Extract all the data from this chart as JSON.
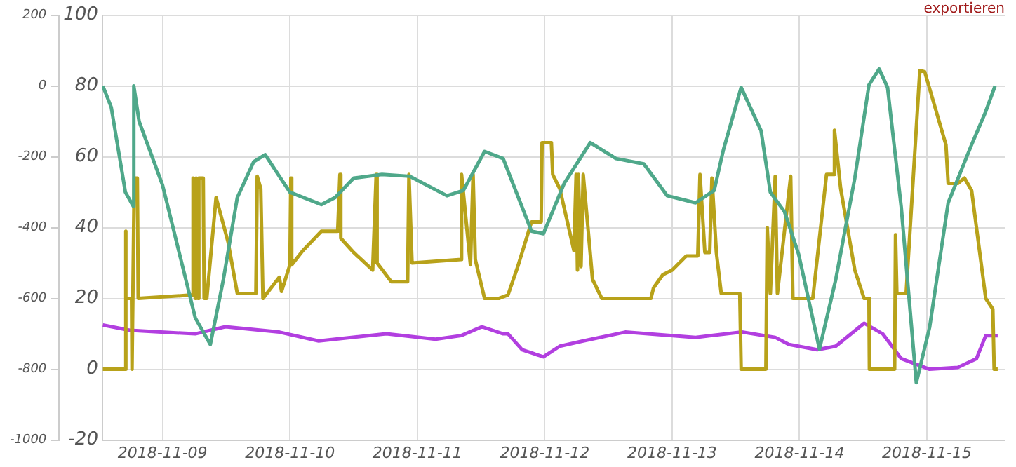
{
  "chart_data": {
    "type": "line",
    "xlim": [
      "2018-11-08T12:40",
      "2018-11-15T14:40"
    ],
    "xticks": [
      "2018-11-09",
      "2018-11-10",
      "2018-11-11",
      "2018-11-12",
      "2018-11-13",
      "2018-11-14",
      "2018-11-15"
    ],
    "ylim": [
      -20,
      100
    ],
    "yticks": [
      -20,
      0,
      20,
      40,
      60,
      80,
      100
    ],
    "y2lim": [
      -1000,
      200
    ],
    "y2ticks": [
      -1000,
      -800,
      -600,
      -400,
      -200,
      0,
      200
    ],
    "grid": true,
    "legend": false,
    "marker": "none",
    "line_style": "solid",
    "annotations": [
      "exportieren"
    ],
    "series": [
      {
        "color": "#4fa88a",
        "x": [
          "2018-11-08T12:45",
          "2018-11-08T14:20",
          "2018-11-08T17:00",
          "2018-11-08T18:30",
          "2018-11-08T18:35",
          "2018-11-08T19:35",
          "2018-11-09T00:00",
          "2018-11-09T06:10",
          "2018-11-09T09:00",
          "2018-11-09T11:25",
          "2018-11-09T14:05",
          "2018-11-09T17:10",
          "2018-11-09T19:20",
          "2018-11-09T22:00",
          "2018-11-10T00:00",
          "2018-11-10T05:55",
          "2018-11-10T08:30",
          "2018-11-10T12:00",
          "2018-11-10T17:20",
          "2018-11-10T22:35",
          "2018-11-11T05:35",
          "2018-11-11T08:40",
          "2018-11-11T12:40",
          "2018-11-11T16:10",
          "2018-11-11T21:30",
          "2018-11-11T23:45",
          "2018-11-12T03:40",
          "2018-11-12T08:35",
          "2018-11-12T13:25",
          "2018-11-12T18:40",
          "2018-11-12T23:05",
          "2018-11-13T04:25",
          "2018-11-13T07:55",
          "2018-11-13T09:40",
          "2018-11-13T13:00",
          "2018-11-13T16:45",
          "2018-11-13T18:30",
          "2018-11-13T21:10",
          "2018-11-13T23:50",
          "2018-11-14T03:45",
          "2018-11-14T06:50",
          "2018-11-14T10:25",
          "2018-11-14T13:05",
          "2018-11-14T15:00",
          "2018-11-14T16:35",
          "2018-11-14T19:10",
          "2018-11-14T22:00",
          "2018-11-15T00:30",
          "2018-11-15T04:00",
          "2018-11-15T08:25",
          "2018-11-15T11:05",
          "2018-11-15T12:50"
        ],
        "values": [
          80,
          74,
          50,
          46,
          80,
          70,
          52,
          14.5,
          7,
          25,
          48.5,
          58.6,
          60.6,
          54.5,
          50,
          46.5,
          48.5,
          54,
          55,
          54.5,
          49,
          50.5,
          61.5,
          59.5,
          39,
          38.3,
          52.5,
          64,
          59.5,
          58,
          49,
          47,
          50.5,
          62,
          79.6,
          67.4,
          50,
          44.5,
          32.5,
          5.7,
          25.4,
          54,
          80.3,
          84.8,
          79.6,
          45.7,
          -3.8,
          11.8,
          47,
          63.4,
          72.8,
          80
        ]
      },
      {
        "color": "#b8a21a",
        "x": [
          "2018-11-08T12:45",
          "2018-11-08T16:58",
          "2018-11-08T17:00",
          "2018-11-08T17:10",
          "2018-11-08T18:10",
          "2018-11-08T18:15",
          "2018-11-08T18:40",
          "2018-11-08T19:15",
          "2018-11-08T19:25",
          "2018-11-09T05:40",
          "2018-11-09T05:45",
          "2018-11-09T06:10",
          "2018-11-09T06:20",
          "2018-11-09T06:40",
          "2018-11-09T06:50",
          "2018-11-09T07:10",
          "2018-11-09T07:40",
          "2018-11-09T07:50",
          "2018-11-09T08:20",
          "2018-11-09T10:05",
          "2018-11-09T12:20",
          "2018-11-09T14:05",
          "2018-11-09T17:35",
          "2018-11-09T17:50",
          "2018-11-09T18:30",
          "2018-11-09T18:55",
          "2018-11-09T22:00",
          "2018-11-09T22:25",
          "2018-11-10T00:00",
          "2018-11-10T00:10",
          "2018-11-10T00:20",
          "2018-11-10T02:25",
          "2018-11-10T05:55",
          "2018-11-10T09:00",
          "2018-11-10T09:25",
          "2018-11-10T09:35",
          "2018-11-10T12:00",
          "2018-11-10T15:35",
          "2018-11-10T16:15",
          "2018-11-10T16:25",
          "2018-11-10T19:05",
          "2018-11-10T22:10",
          "2018-11-10T22:25",
          "2018-11-10T23:00",
          "2018-11-11T08:15",
          "2018-11-11T08:20",
          "2018-11-11T10:00",
          "2018-11-11T10:30",
          "2018-11-11T10:55",
          "2018-11-11T12:40",
          "2018-11-11T15:20",
          "2018-11-11T17:05",
          "2018-11-11T18:55",
          "2018-11-11T21:30",
          "2018-11-11T23:20",
          "2018-11-11T23:30",
          "2018-11-12T01:15",
          "2018-11-12T01:30",
          "2018-11-12T02:50",
          "2018-11-12T05:30",
          "2018-11-12T05:55",
          "2018-11-12T06:10",
          "2018-11-12T06:20",
          "2018-11-12T06:50",
          "2018-11-12T07:15",
          "2018-11-12T09:00",
          "2018-11-12T10:45",
          "2018-11-12T20:00",
          "2018-11-12T20:30",
          "2018-11-12T22:15",
          "2018-11-13T00:00",
          "2018-11-13T02:40",
          "2018-11-13T04:50",
          "2018-11-13T05:15",
          "2018-11-13T06:10",
          "2018-11-13T07:05",
          "2018-11-13T07:30",
          "2018-11-13T08:20",
          "2018-11-13T09:15",
          "2018-11-13T12:45",
          "2018-11-13T13:00",
          "2018-11-13T17:40",
          "2018-11-13T17:55",
          "2018-11-13T18:30",
          "2018-11-13T19:25",
          "2018-11-13T19:50",
          "2018-11-13T22:20",
          "2018-11-13T22:45",
          "2018-11-14T02:30",
          "2018-11-14T05:05",
          "2018-11-14T06:25",
          "2018-11-14T06:35",
          "2018-11-14T07:45",
          "2018-11-14T10:25",
          "2018-11-14T12:10",
          "2018-11-14T13:05",
          "2018-11-14T13:10",
          "2018-11-14T17:55",
          "2018-11-14T18:05",
          "2018-11-14T18:20",
          "2018-11-14T20:05",
          "2018-11-14T22:40",
          "2018-11-14T23:35",
          "2018-11-15T03:35",
          "2018-11-15T04:00",
          "2018-11-15T05:50",
          "2018-11-15T07:05",
          "2018-11-15T08:25",
          "2018-11-15T11:05",
          "2018-11-15T12:25",
          "2018-11-15T12:40",
          "2018-11-15T13:20"
        ],
        "values": [
          0,
          0,
          39,
          20,
          20,
          0,
          54,
          54,
          20,
          21,
          54,
          20,
          54,
          20,
          54,
          54,
          54,
          20,
          20,
          48.5,
          36,
          21.4,
          21.4,
          54.5,
          51,
          20,
          26,
          22,
          29.5,
          54,
          29.5,
          33.5,
          39,
          39,
          55,
          37,
          33,
          28,
          55,
          30,
          24.7,
          24.7,
          55,
          30,
          31,
          55,
          29.5,
          55,
          31,
          20,
          20,
          21,
          29,
          41.6,
          41.6,
          64,
          64,
          55,
          51,
          33.5,
          55,
          28,
          55,
          29,
          55,
          25.4,
          20,
          20,
          23,
          26.7,
          28,
          32,
          32,
          55,
          33,
          33,
          54,
          33,
          21.4,
          21.4,
          0,
          0,
          40,
          21.4,
          54.5,
          21.4,
          54.5,
          20,
          20,
          55,
          55,
          67.5,
          51,
          28,
          20,
          20,
          0,
          0,
          38,
          21.4,
          21.4,
          84.4,
          84,
          63.4,
          52.5,
          52.5,
          54,
          50.5,
          20,
          17,
          0,
          0
        ]
      },
      {
        "color": "#b23fe0",
        "axis": "y2",
        "x": [
          "2018-11-08T12:45",
          "2018-11-08T17:50",
          "2018-11-09T06:10",
          "2018-11-09T11:50",
          "2018-11-09T22:00",
          "2018-11-10T05:25",
          "2018-11-10T18:10",
          "2018-11-11T03:25",
          "2018-11-11T08:15",
          "2018-11-11T12:10",
          "2018-11-11T16:10",
          "2018-11-11T17:05",
          "2018-11-11T19:45",
          "2018-11-11T23:45",
          "2018-11-12T02:50",
          "2018-11-12T07:15",
          "2018-11-12T15:10",
          "2018-11-13T04:25",
          "2018-11-13T13:10",
          "2018-11-13T19:25",
          "2018-11-13T22:00",
          "2018-11-14T03:20",
          "2018-11-14T06:50",
          "2018-11-14T12:10",
          "2018-11-14T15:40",
          "2018-11-14T19:10",
          "2018-11-15T00:30",
          "2018-11-15T05:50",
          "2018-11-15T09:20",
          "2018-11-15T11:05",
          "2018-11-15T13:20"
        ],
        "values": [
          -675,
          -690,
          -700,
          -680,
          -695,
          -720,
          -700,
          -715,
          -705,
          -680,
          -700,
          -700,
          -745,
          -765,
          -735,
          -720,
          -695,
          -710,
          -695,
          -710,
          -730,
          -745,
          -735,
          -670,
          -700,
          -770,
          -800,
          -795,
          -770,
          -705,
          -705
        ]
      }
    ]
  }
}
